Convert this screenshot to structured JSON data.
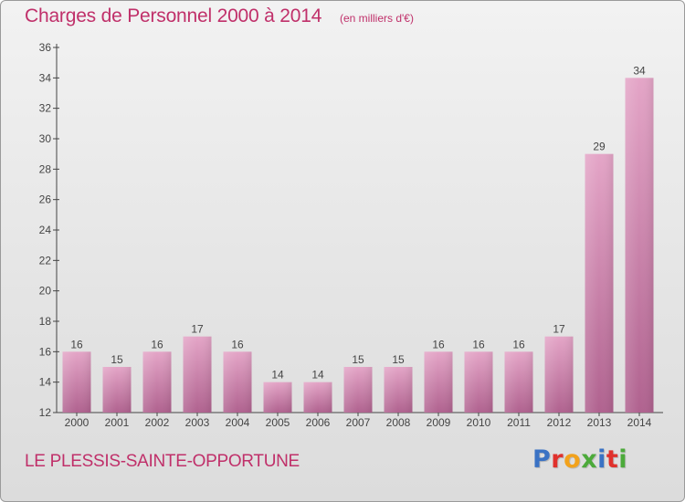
{
  "header": {
    "title": "Charges de Personnel 2000 à 2014",
    "subtitle": "(en milliers d'€)"
  },
  "footer": {
    "location": "LE PLESSIS-SAINTE-OPPORTUNE",
    "logo": [
      "P",
      "r",
      "o",
      "x",
      "i",
      "t",
      "i"
    ]
  },
  "colors": {
    "title": "#c0306a",
    "bar_top": "#e4a5c7",
    "bar_bottom": "#b0628f",
    "axis": "#444444",
    "logo": [
      "#3a72c4",
      "#e0312c",
      "#f2a21c",
      "#4caa3a",
      "#3a72c4",
      "#e0312c",
      "#4caa3a"
    ]
  },
  "chart_data": {
    "type": "bar",
    "title": "Charges de Personnel 2000 à 2014",
    "subtitle": "(en milliers d'€)",
    "categories": [
      "2000",
      "2001",
      "2002",
      "2003",
      "2004",
      "2005",
      "2006",
      "2007",
      "2008",
      "2009",
      "2010",
      "2011",
      "2012",
      "2013",
      "2014"
    ],
    "values": [
      16,
      15,
      16,
      17,
      16,
      14,
      14,
      15,
      15,
      16,
      16,
      16,
      17,
      29,
      34
    ],
    "ylim": [
      12,
      36
    ],
    "yticks": [
      12,
      14,
      16,
      18,
      20,
      22,
      24,
      26,
      28,
      30,
      32,
      34,
      36
    ],
    "grid": false,
    "legend": "none"
  }
}
